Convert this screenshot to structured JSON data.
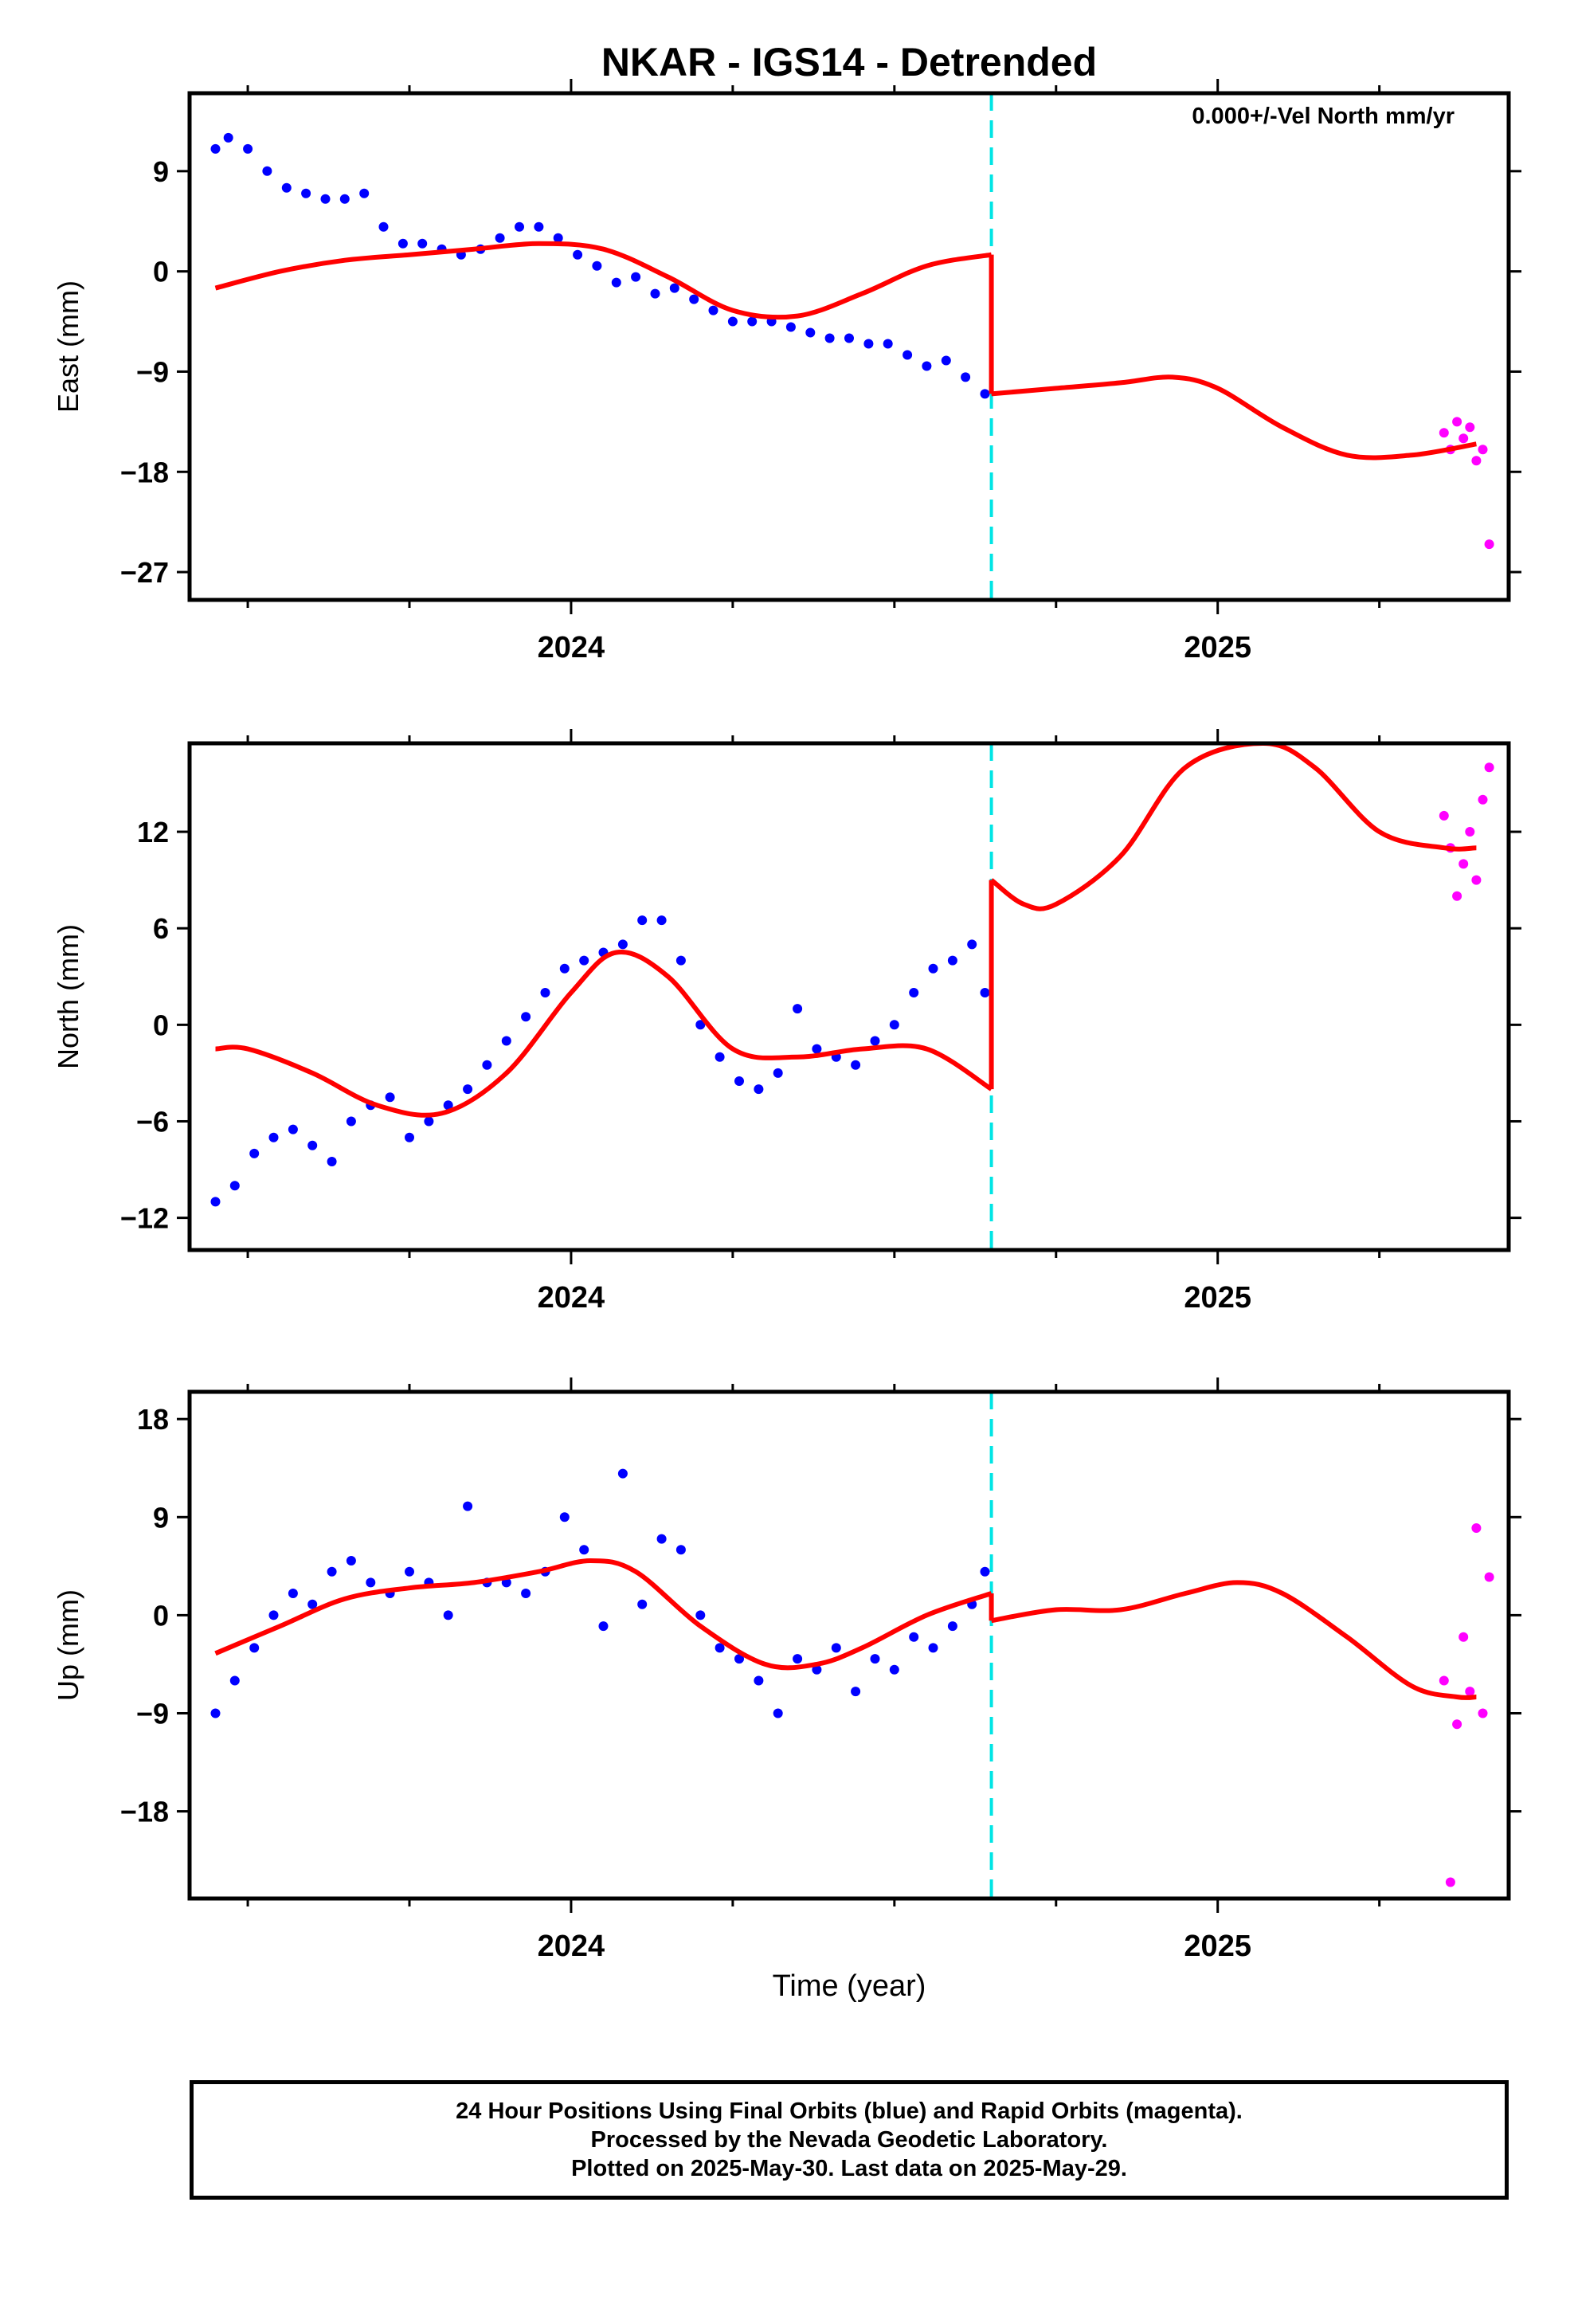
{
  "title": "NKAR - IGS14 - Detrended",
  "xlabel": "Time (year)",
  "footer": {
    "line1": "24 Hour Positions Using Final Orbits (blue) and Rapid Orbits (magenta).",
    "line2": "Processed by the Nevada Geodetic Laboratory.",
    "line3": "Plotted on 2025-May-30. Last data on 2025-May-29."
  },
  "colors": {
    "final": "#0000ff",
    "rapid": "#ff00ff",
    "model": "#ff0000",
    "equipment_change": "#00e5e5"
  },
  "chart_data": [
    {
      "type": "scatter",
      "component": "East",
      "ylabel": "East (mm)",
      "annotation": "0.000+/-Vel North mm/yr",
      "xlim": [
        2023.41,
        2025.45
      ],
      "ylim": [
        -29.5,
        16
      ],
      "yticks": [
        -27,
        -18,
        -9,
        0,
        9
      ],
      "xticks_major": [
        2024,
        2025
      ],
      "xticks_minor": [
        2023.5,
        2023.75,
        2024.25,
        2024.5,
        2024.75,
        2025.25
      ],
      "equipment_change": 2024.65,
      "series": [
        {
          "name": "Final",
          "color": "#0000ff",
          "x": [
            2023.45,
            2023.47,
            2023.5,
            2023.53,
            2023.56,
            2023.59,
            2023.62,
            2023.65,
            2023.68,
            2023.71,
            2023.74,
            2023.77,
            2023.8,
            2023.83,
            2023.86,
            2023.89,
            2023.92,
            2023.95,
            2023.98,
            2024.01,
            2024.04,
            2024.07,
            2024.1,
            2024.13,
            2024.16,
            2024.19,
            2024.22,
            2024.25,
            2024.28,
            2024.31,
            2024.34,
            2024.37,
            2024.4,
            2024.43,
            2024.46,
            2024.49,
            2024.52,
            2024.55,
            2024.58,
            2024.61,
            2024.64
          ],
          "y": [
            11,
            12,
            11,
            9,
            7.5,
            7,
            6.5,
            6.5,
            7,
            4,
            2.5,
            2.5,
            2,
            1.5,
            2,
            3,
            4,
            4,
            3,
            1.5,
            0.5,
            -1,
            -0.5,
            -2,
            -1.5,
            -2.5,
            -3.5,
            -4.5,
            -4.5,
            -4.5,
            -5,
            -5.5,
            -6,
            -6,
            -6.5,
            -6.5,
            -7.5,
            -8.5,
            -8,
            -9.5,
            -11
          ]
        },
        {
          "name": "Rapid",
          "color": "#ff00ff",
          "x": [
            2025.35,
            2025.36,
            2025.37,
            2025.38,
            2025.39,
            2025.4,
            2025.41,
            2025.42
          ],
          "y": [
            -14.5,
            -16,
            -13.5,
            -15,
            -14,
            -17,
            -16,
            -24.5
          ]
        }
      ],
      "model_segments": [
        {
          "x": [
            2023.45,
            2023.55,
            2023.65,
            2023.75,
            2023.85,
            2023.95,
            2024.05,
            2024.15,
            2024.25,
            2024.35,
            2024.45,
            2024.55,
            2024.65
          ],
          "y": [
            -1.5,
            0,
            1,
            1.5,
            2,
            2.5,
            2,
            -0.5,
            -3.5,
            -4,
            -2,
            0.5,
            1.5
          ]
        },
        {
          "x": [
            2024.65,
            2024.75,
            2024.85,
            2024.93,
            2025.0,
            2025.1,
            2025.2,
            2025.3,
            2025.4
          ],
          "y": [
            -11,
            -10.5,
            -10,
            -9.5,
            -10.5,
            -14,
            -16.5,
            -16.5,
            -15.5
          ]
        }
      ]
    },
    {
      "type": "scatter",
      "component": "North",
      "ylabel": "North (mm)",
      "xlim": [
        2023.41,
        2025.45
      ],
      "ylim": [
        -14,
        17.5
      ],
      "yticks": [
        -12,
        -6,
        0,
        6,
        12
      ],
      "xticks_major": [
        2024,
        2025
      ],
      "xticks_minor": [
        2023.5,
        2023.75,
        2024.25,
        2024.5,
        2024.75,
        2025.25
      ],
      "equipment_change": 2024.65,
      "series": [
        {
          "name": "Final",
          "color": "#0000ff",
          "x": [
            2023.45,
            2023.48,
            2023.51,
            2023.54,
            2023.57,
            2023.6,
            2023.63,
            2023.66,
            2023.69,
            2023.72,
            2023.75,
            2023.78,
            2023.81,
            2023.84,
            2023.87,
            2023.9,
            2023.93,
            2023.96,
            2023.99,
            2024.02,
            2024.05,
            2024.08,
            2024.11,
            2024.14,
            2024.17,
            2024.2,
            2024.23,
            2024.26,
            2024.29,
            2024.32,
            2024.35,
            2024.38,
            2024.41,
            2024.44,
            2024.47,
            2024.5,
            2024.53,
            2024.56,
            2024.59,
            2024.62,
            2024.64
          ],
          "y": [
            -11,
            -10,
            -8,
            -7,
            -6.5,
            -7.5,
            -8.5,
            -6,
            -5,
            -4.5,
            -7,
            -6,
            -5,
            -4,
            -2.5,
            -1,
            0.5,
            2,
            3.5,
            4,
            4.5,
            5,
            6.5,
            6.5,
            4,
            0,
            -2,
            -3.5,
            -4,
            -3,
            1,
            -1.5,
            -2,
            -2.5,
            -1,
            0,
            2,
            3.5,
            4,
            5,
            2
          ]
        },
        {
          "name": "Rapid",
          "color": "#ff00ff",
          "x": [
            2025.35,
            2025.36,
            2025.37,
            2025.38,
            2025.39,
            2025.4,
            2025.41,
            2025.42
          ],
          "y": [
            13,
            11,
            8,
            10,
            12,
            9,
            14,
            16
          ]
        }
      ],
      "model_segments": [
        {
          "x": [
            2023.45,
            2023.5,
            2023.6,
            2023.7,
            2023.8,
            2023.9,
            2024.0,
            2024.07,
            2024.15,
            2024.25,
            2024.35,
            2024.45,
            2024.55,
            2024.65
          ],
          "y": [
            -1.5,
            -1.5,
            -3,
            -5,
            -5.5,
            -3,
            2,
            4.5,
            3,
            -1.5,
            -2,
            -1.5,
            -1.5,
            -4
          ]
        },
        {
          "x": [
            2024.65,
            2024.7,
            2024.75,
            2024.85,
            2024.95,
            2025.07,
            2025.15,
            2025.25,
            2025.35,
            2025.4
          ],
          "y": [
            9,
            7.5,
            7.5,
            10.5,
            16,
            17.5,
            16,
            12,
            11,
            11
          ]
        }
      ]
    },
    {
      "type": "scatter",
      "component": "Up",
      "ylabel": "Up (mm)",
      "xlim": [
        2023.41,
        2025.45
      ],
      "ylim": [
        -26,
        20.5
      ],
      "yticks": [
        -18,
        -9,
        0,
        9,
        18
      ],
      "xticks_major": [
        2024,
        2025
      ],
      "xticks_minor": [
        2023.5,
        2023.75,
        2024.25,
        2024.5,
        2024.75,
        2025.25
      ],
      "equipment_change": 2024.65,
      "series": [
        {
          "name": "Final",
          "color": "#0000ff",
          "x": [
            2023.45,
            2023.48,
            2023.51,
            2023.54,
            2023.57,
            2023.6,
            2023.63,
            2023.66,
            2023.69,
            2023.72,
            2023.75,
            2023.78,
            2023.81,
            2023.84,
            2023.87,
            2023.9,
            2023.93,
            2023.96,
            2023.99,
            2024.02,
            2024.05,
            2024.08,
            2024.11,
            2024.14,
            2024.17,
            2024.2,
            2024.23,
            2024.26,
            2024.29,
            2024.32,
            2024.35,
            2024.38,
            2024.41,
            2024.44,
            2024.47,
            2024.5,
            2024.53,
            2024.56,
            2024.59,
            2024.62,
            2024.64
          ],
          "y": [
            -9,
            -6,
            -3,
            0,
            2,
            1,
            4,
            5,
            3,
            2,
            4,
            3,
            0,
            10,
            3,
            3,
            2,
            4,
            9,
            6,
            -1,
            13,
            1,
            7,
            6,
            0,
            -3,
            -4,
            -6,
            -9,
            -4,
            -5,
            -3,
            -7,
            -4,
            -5,
            -2,
            -3,
            -1,
            1,
            4
          ]
        },
        {
          "name": "Rapid",
          "color": "#ff00ff",
          "x": [
            2025.35,
            2025.36,
            2025.37,
            2025.38,
            2025.39,
            2025.4,
            2025.41,
            2025.42
          ],
          "y": [
            -6,
            -24.5,
            -10,
            -2,
            -7,
            8,
            -9,
            3.5
          ]
        }
      ],
      "model_segments": [
        {
          "x": [
            2023.45,
            2023.55,
            2023.65,
            2023.75,
            2023.85,
            2023.95,
            2024.03,
            2024.1,
            2024.2,
            2024.3,
            2024.38,
            2024.45,
            2024.55,
            2024.65
          ],
          "y": [
            -3.5,
            -1,
            1.5,
            2.5,
            3,
            4,
            5,
            4,
            -1,
            -4.5,
            -4.5,
            -3,
            0,
            2
          ]
        },
        {
          "x": [
            2024.65,
            2024.75,
            2024.85,
            2024.95,
            2025.03,
            2025.1,
            2025.2,
            2025.3,
            2025.37,
            2025.4
          ],
          "y": [
            -0.5,
            0.5,
            0.5,
            2,
            3,
            2,
            -2,
            -6.5,
            -7.5,
            -7.5
          ]
        }
      ]
    }
  ]
}
